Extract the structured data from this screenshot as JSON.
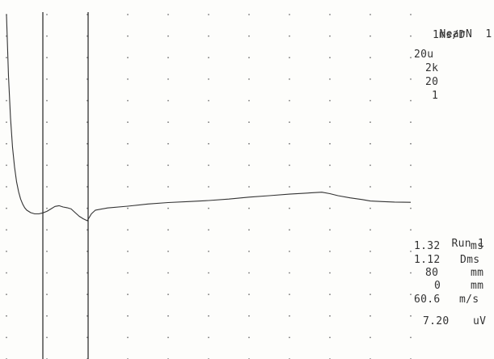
{
  "settings_panel": {
    "test_name": "NearN",
    "channel": "1",
    "sweep": "1ms/D",
    "sensitivity": "20u",
    "high_filter": "2k",
    "low_filter": "20",
    "averages": "1"
  },
  "results_panel": {
    "run_label": "Run",
    "run_number": "1",
    "latency_value": "1.32",
    "latency_unit": "ms",
    "duration_value": "1.12",
    "duration_unit": "Dms",
    "distance_value": "80",
    "distance_unit": "mm",
    "offset_value": "0",
    "offset_unit": "mm",
    "velocity_value": "60.6",
    "velocity_unit": "m/s",
    "amplitude_value": "7.20",
    "amplitude_unit": "uV"
  },
  "chart_data": {
    "type": "line",
    "title": "",
    "xlabel": "",
    "ylabel": "",
    "grid": true,
    "x_unit": "ms",
    "y_unit": "uV",
    "xlim": [
      0,
      10
    ],
    "ylim": [
      -70,
      70
    ],
    "cursors": [
      {
        "name": "1",
        "x": 0.9
      },
      {
        "name": "2",
        "x": 2.02
      }
    ],
    "series": [
      {
        "x": [
          0.0,
          0.05,
          0.1,
          0.15,
          0.2,
          0.25,
          0.3,
          0.35,
          0.4,
          0.45,
          0.5,
          0.6,
          0.7,
          0.8,
          0.9,
          1.0,
          1.1,
          1.2,
          1.3,
          1.4,
          1.5,
          1.6,
          1.7,
          1.8,
          1.9,
          2.0,
          2.1,
          2.2,
          2.5,
          3.0,
          3.5,
          4.0,
          4.5,
          5.0,
          5.5,
          6.0,
          6.5,
          7.0,
          7.5,
          7.8,
          8.0,
          8.2,
          8.5,
          8.8,
          9.0,
          9.3,
          9.6,
          10.0
        ],
        "y": [
          70,
          45,
          28,
          16,
          8,
          2,
          -2,
          -5,
          -7,
          -8.5,
          -9.5,
          -10.5,
          -11,
          -11,
          -10.6,
          -10,
          -9,
          -8,
          -7.7,
          -8.2,
          -8.5,
          -9,
          -10.5,
          -12,
          -13,
          -13.8,
          -11,
          -9.5,
          -8.6,
          -7.9,
          -7.0,
          -6.4,
          -6.0,
          -5.6,
          -5.0,
          -4.2,
          -3.6,
          -3.0,
          -2.5,
          -2.2,
          -2.8,
          -3.6,
          -4.5,
          -5.2,
          -5.8,
          -6.0,
          -6.2,
          -6.3
        ]
      }
    ]
  }
}
